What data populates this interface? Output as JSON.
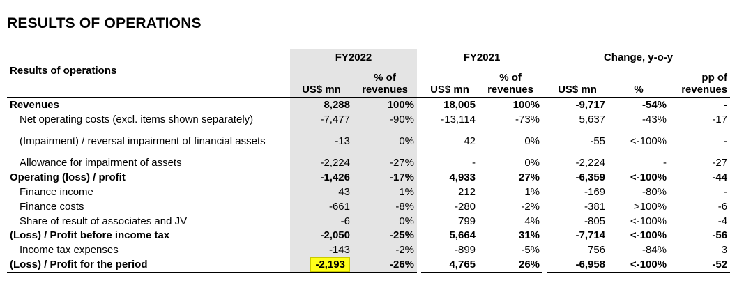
{
  "page": {
    "title": "RESULTS OF OPERATIONS"
  },
  "table": {
    "row_header": "Results of operations",
    "groups": {
      "fy2022": "FY2022",
      "fy2021": "FY2021",
      "change": "Change, y-o-y"
    },
    "subheaders": {
      "usd_mn": "US$ mn",
      "pct_of": "% of",
      "revenues": "revenues",
      "pct": "%",
      "pp_of": "pp of"
    },
    "rows": [
      {
        "label": "Revenues",
        "bold": true,
        "indent": false,
        "fy22_usd": "8,288",
        "fy22_pct": "100%",
        "fy21_usd": "18,005",
        "fy21_pct": "100%",
        "chg_usd": "-9,717",
        "chg_pct": "-54%",
        "chg_pp": "-"
      },
      {
        "label": "Net operating costs (excl. items shown separately)",
        "bold": false,
        "indent": true,
        "fy22_usd": "-7,477",
        "fy22_pct": "-90%",
        "fy21_usd": "-13,114",
        "fy21_pct": "-73%",
        "chg_usd": "5,637",
        "chg_pct": "-43%",
        "chg_pp": "-17"
      },
      {
        "label": "(Impairment) / reversal impairment of financial assets",
        "bold": false,
        "indent": true,
        "tall": true,
        "fy22_usd": "-13",
        "fy22_pct": "0%",
        "fy21_usd": "42",
        "fy21_pct": "0%",
        "chg_usd": "-55",
        "chg_pct": "<-100%",
        "chg_pp": "-"
      },
      {
        "label": "Allowance for impairment of assets",
        "bold": false,
        "indent": true,
        "fy22_usd": "-2,224",
        "fy22_pct": "-27%",
        "fy21_usd": "-",
        "fy21_pct": "0%",
        "chg_usd": "-2,224",
        "chg_pct": "-",
        "chg_pp": "-27"
      },
      {
        "label": "Operating (loss) / profit",
        "bold": true,
        "indent": false,
        "fy22_usd": "-1,426",
        "fy22_pct": "-17%",
        "fy21_usd": "4,933",
        "fy21_pct": "27%",
        "chg_usd": "-6,359",
        "chg_pct": "<-100%",
        "chg_pp": "-44"
      },
      {
        "label": "Finance income",
        "bold": false,
        "indent": true,
        "fy22_usd": "43",
        "fy22_pct": "1%",
        "fy21_usd": "212",
        "fy21_pct": "1%",
        "chg_usd": "-169",
        "chg_pct": "-80%",
        "chg_pp": "-"
      },
      {
        "label": "Finance costs",
        "bold": false,
        "indent": true,
        "fy22_usd": "-661",
        "fy22_pct": "-8%",
        "fy21_usd": "-280",
        "fy21_pct": "-2%",
        "chg_usd": "-381",
        "chg_pct": ">100%",
        "chg_pp": "-6"
      },
      {
        "label": "Share of result of associates and JV",
        "bold": false,
        "indent": true,
        "fy22_usd": "-6",
        "fy22_pct": "0%",
        "fy21_usd": "799",
        "fy21_pct": "4%",
        "chg_usd": "-805",
        "chg_pct": "<-100%",
        "chg_pp": "-4"
      },
      {
        "label": "(Loss) / Profit before income tax",
        "bold": true,
        "indent": false,
        "fy22_usd": "-2,050",
        "fy22_pct": "-25%",
        "fy21_usd": "5,664",
        "fy21_pct": "31%",
        "chg_usd": "-7,714",
        "chg_pct": "<-100%",
        "chg_pp": "-56"
      },
      {
        "label": "Income tax expenses",
        "bold": false,
        "indent": true,
        "fy22_usd": "-143",
        "fy22_pct": "-2%",
        "fy21_usd": "-899",
        "fy21_pct": "-5%",
        "chg_usd": "756",
        "chg_pct": "-84%",
        "chg_pp": "3"
      },
      {
        "label": "(Loss) / Profit for the period",
        "bold": true,
        "indent": false,
        "highlight_fy22_usd": true,
        "fy22_usd": "-2,193",
        "fy22_pct": "-26%",
        "fy21_usd": "4,765",
        "fy21_pct": "26%",
        "chg_usd": "-6,958",
        "chg_pct": "<-100%",
        "chg_pp": "-52"
      }
    ],
    "colors": {
      "shade": "#e4e4e4",
      "highlight": "#ffff1a"
    }
  }
}
